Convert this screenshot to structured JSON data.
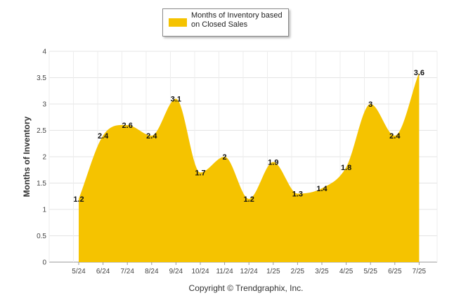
{
  "chart_data": {
    "type": "area",
    "title": "",
    "xlabel": "",
    "ylabel": "Months of Inventory",
    "categories": [
      "5/24",
      "6/24",
      "7/24",
      "8/24",
      "9/24",
      "10/24",
      "11/24",
      "12/24",
      "1/25",
      "2/25",
      "3/25",
      "4/25",
      "5/25",
      "6/25",
      "7/25"
    ],
    "series": [
      {
        "name": "Months of Inventory based on Closed Sales",
        "values": [
          1.2,
          2.4,
          2.6,
          2.4,
          3.1,
          1.7,
          2,
          1.2,
          1.9,
          1.3,
          1.4,
          1.8,
          3,
          2.4,
          3.6
        ],
        "color": "#f5c300"
      }
    ],
    "ylim": [
      0,
      4
    ],
    "yticks": [
      "0",
      "0.5",
      "1",
      "1.5",
      "2",
      "2.5",
      "3",
      "3.5",
      "4"
    ],
    "data_labels": [
      "1.2",
      "2.4",
      "2.6",
      "2.4",
      "3.1",
      "1.7",
      "2",
      "1.2",
      "1.9",
      "1.3",
      "1.4",
      "1.8",
      "3",
      "2.4",
      "3.6"
    ],
    "grid": true,
    "legend_position": "top-center",
    "footer": "Copyright © Trendgraphix, Inc."
  }
}
